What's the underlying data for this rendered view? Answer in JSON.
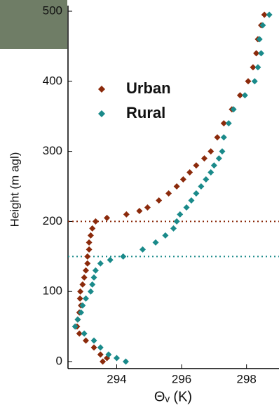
{
  "chart_data": {
    "type": "scatter",
    "xlabel": "Θᵥ (K)",
    "ylabel": "Height (m agl)",
    "xlim": [
      292.5,
      299.0
    ],
    "xticks": [
      294,
      296,
      298
    ],
    "ylim": [
      -10,
      500
    ],
    "yticks": [
      0,
      100,
      200,
      300,
      400,
      500
    ],
    "legend": "upper left",
    "reference_lines": [
      {
        "value": 200,
        "color": "#8b2a0b"
      },
      {
        "value": 150,
        "color": "#1a8a8a"
      }
    ],
    "series": [
      {
        "name": "Urban",
        "color": "#8b2a0b",
        "y": [
          0,
          5,
          10,
          20,
          30,
          40,
          50,
          60,
          70,
          80,
          90,
          100,
          110,
          120,
          130,
          140,
          150,
          160,
          170,
          180,
          190,
          200,
          205,
          210,
          215,
          220,
          230,
          240,
          250,
          260,
          270,
          280,
          290,
          300,
          320,
          340,
          360,
          380,
          400,
          420,
          440,
          460,
          480,
          495
        ],
        "x": [
          293.57,
          293.7,
          293.5,
          293.3,
          293.05,
          292.85,
          292.78,
          292.8,
          292.85,
          292.9,
          292.87,
          292.88,
          292.95,
          293.0,
          293.05,
          293.1,
          293.1,
          293.15,
          293.15,
          293.2,
          293.25,
          293.35,
          293.7,
          294.3,
          294.7,
          294.95,
          295.3,
          295.6,
          295.85,
          296.05,
          296.25,
          296.45,
          296.7,
          296.9,
          297.1,
          297.3,
          297.55,
          297.8,
          298.05,
          298.2,
          298.3,
          298.35,
          298.45,
          298.55
        ]
      },
      {
        "name": "Rural",
        "color": "#1a8a8a",
        "y": [
          0,
          5,
          10,
          20,
          30,
          40,
          50,
          60,
          70,
          80,
          90,
          100,
          110,
          120,
          130,
          140,
          145,
          150,
          160,
          170,
          180,
          190,
          200,
          210,
          220,
          230,
          240,
          250,
          260,
          270,
          280,
          290,
          300,
          320,
          340,
          360,
          380,
          400,
          420,
          440,
          460,
          480,
          495
        ],
        "x": [
          294.28,
          294.0,
          293.75,
          293.5,
          293.3,
          293.0,
          292.72,
          292.8,
          292.9,
          292.95,
          293.05,
          293.2,
          293.25,
          293.3,
          293.35,
          293.5,
          293.8,
          294.2,
          294.8,
          295.2,
          295.5,
          295.75,
          295.85,
          295.95,
          296.15,
          296.3,
          296.45,
          296.6,
          296.75,
          296.9,
          297.0,
          297.15,
          297.25,
          297.3,
          297.45,
          297.6,
          297.95,
          298.25,
          298.35,
          298.45,
          298.4,
          298.5,
          298.7
        ]
      }
    ]
  }
}
